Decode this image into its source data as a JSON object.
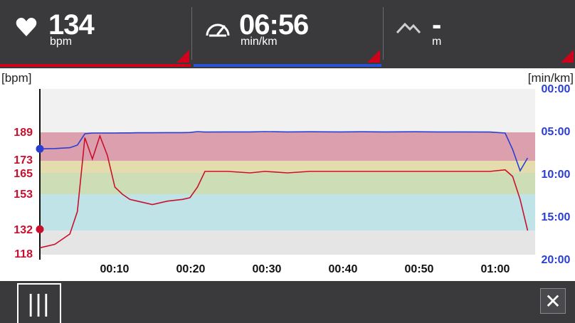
{
  "metrics": {
    "heart_rate": {
      "icon": "heart-icon",
      "value": "134",
      "unit": "bpm"
    },
    "pace": {
      "icon": "speedometer-icon",
      "value": "06:56",
      "unit": "min/km"
    },
    "elevation": {
      "icon": "mountain-icon",
      "value": "-",
      "unit": "m"
    }
  },
  "colors": {
    "accent": "#d0021b",
    "pace_selected": "#2a52d9",
    "topbar": "#3a3a3d",
    "hr_line": "#c8102e",
    "pace_line": "#2a3fd1"
  },
  "chart": {
    "left_axis_label": "[bpm]",
    "right_axis_label": "[min/km]",
    "hr_ticks": [
      "189",
      "173",
      "165",
      "153",
      "132",
      "118"
    ],
    "pace_ticks": [
      "00:00",
      "05:00",
      "10:00",
      "15:00",
      "20:00"
    ],
    "time_ticks": [
      "00:10",
      "00:20",
      "00:30",
      "00:40",
      "00:50",
      "01:00"
    ]
  },
  "chart_data": {
    "type": "line",
    "xlabel": "",
    "x": [
      "00:00",
      "00:02",
      "00:04",
      "00:05",
      "00:06",
      "00:07",
      "00:08",
      "00:09",
      "00:10",
      "00:11",
      "00:12",
      "00:13",
      "00:15",
      "00:17",
      "00:19",
      "00:20",
      "00:21",
      "00:22",
      "00:25",
      "00:28",
      "00:30",
      "00:33",
      "00:36",
      "00:40",
      "00:43",
      "00:46",
      "00:50",
      "00:53",
      "00:56",
      "01:00",
      "01:02",
      "01:03",
      "01:04",
      "01:05"
    ],
    "series": [
      {
        "axis": "left",
        "unit": "bpm",
        "values": [
          122,
          124,
          130,
          143,
          186,
          174,
          187,
          176,
          157,
          153,
          150,
          149,
          147,
          149,
          150,
          151,
          157,
          166,
          166,
          165,
          166,
          165,
          166,
          166,
          166,
          166,
          166,
          166,
          166,
          166,
          167,
          163,
          150,
          132
        ]
      },
      {
        "axis": "right",
        "unit": "min/km",
        "values": [
          "06:56",
          "06:54",
          "06:48",
          "06:30",
          "05:10",
          "05:05",
          "05:05",
          "05:05",
          "05:05",
          "05:04",
          "05:04",
          "05:03",
          "05:03",
          "05:02",
          "05:02",
          "05:01",
          "04:55",
          "04:58",
          "04:57",
          "04:57",
          "04:55",
          "04:57",
          "04:56",
          "04:57",
          "04:56",
          "04:57",
          "04:56",
          "04:57",
          "04:57",
          "04:58",
          "05:05",
          "07:00",
          "09:30",
          "08:00"
        ]
      }
    ],
    "ylim_left": [
      118,
      196
    ],
    "ylim_right": [
      "00:00",
      "20:00"
    ],
    "zones": [
      {
        "from": 173,
        "to": 189,
        "color": "#d896a6"
      },
      {
        "from": 165,
        "to": 173,
        "color": "#e3d9a5"
      },
      {
        "from": 153,
        "to": 165,
        "color": "#c9dbaf"
      },
      {
        "from": 132,
        "to": 153,
        "color": "#b9e1e6"
      },
      {
        "from": 118,
        "to": 132,
        "color": "#e3e3e3"
      }
    ],
    "grid": false
  }
}
